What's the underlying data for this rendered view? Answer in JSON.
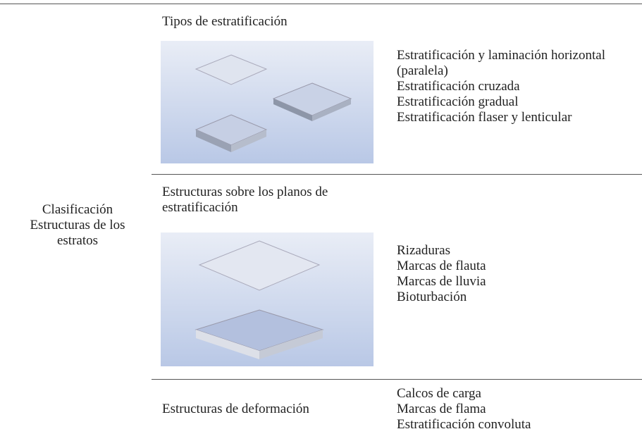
{
  "table": {
    "row_header": "Clasificación Estructuras de los estratos",
    "rows": [
      {
        "title": "Tipos de estratificación",
        "items": [
          "Estratificación y laminación horizontal (paralela)",
          "Estratificación cruzada",
          "Estratificación gradual",
          "Estratificación flaser y lenticular"
        ]
      },
      {
        "title": "Estructuras sobre los planos de estratificación",
        "items": [
          "Rizaduras",
          "Marcas de flauta",
          "Marcas de lluvia",
          "Bioturbación"
        ]
      },
      {
        "title": "Estructuras de deformación",
        "items": [
          "Calcos de carga",
          "Marcas de flama",
          "Estratificación convoluta"
        ]
      }
    ]
  }
}
